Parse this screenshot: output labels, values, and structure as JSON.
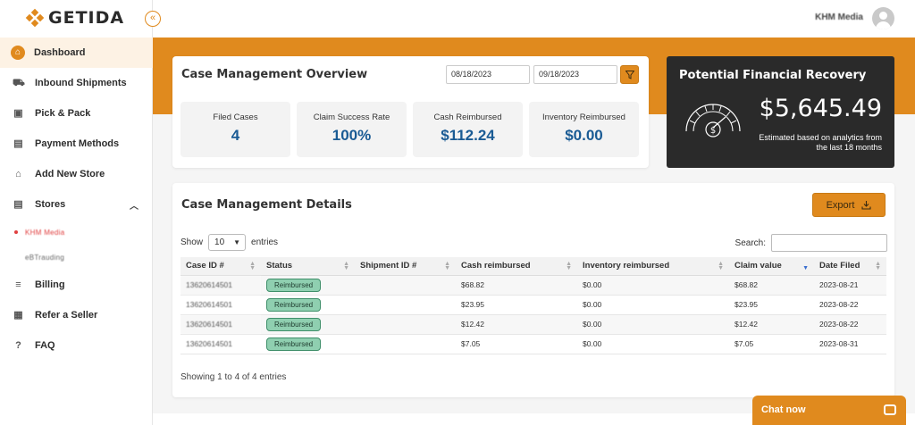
{
  "brand": {
    "name": "GETIDA",
    "accent": "#e08a1e"
  },
  "collapse": {
    "glyph": "«"
  },
  "sidebar": {
    "items": [
      {
        "label": "Dashboard",
        "icon": "home-icon",
        "glyph": "⌂"
      },
      {
        "label": "Inbound Shipments",
        "icon": "truck-icon",
        "glyph": "⛟"
      },
      {
        "label": "Pick & Pack",
        "icon": "box-icon",
        "glyph": "▣"
      },
      {
        "label": "Payment Methods",
        "icon": "credit-card-icon",
        "glyph": "▤"
      },
      {
        "label": "Add New Store",
        "icon": "store-icon",
        "glyph": "⌂"
      },
      {
        "label": "Stores",
        "icon": "stores-icon",
        "glyph": "▤",
        "chevron": "︿"
      },
      {
        "label": "Billing",
        "icon": "billing-icon",
        "glyph": "≡"
      },
      {
        "label": "Refer a Seller",
        "icon": "gift-icon",
        "glyph": "▦"
      },
      {
        "label": "FAQ",
        "icon": "help-icon",
        "glyph": "?"
      }
    ],
    "stores": [
      {
        "label": "KHM Media"
      },
      {
        "label": "eBTrauding"
      }
    ]
  },
  "topbar": {
    "user_name": "KHM Media"
  },
  "overview": {
    "title": "Case Management Overview",
    "date_from": "08/18/2023",
    "date_to": "09/18/2023",
    "stats": [
      {
        "label": "Filed Cases",
        "value": "4"
      },
      {
        "label": "Claim Success Rate",
        "value": "100%"
      },
      {
        "label": "Cash Reimbursed",
        "value": "$112.24"
      },
      {
        "label": "Inventory Reimbursed",
        "value": "$0.00"
      }
    ]
  },
  "recovery": {
    "title": "Potential Financial Recovery",
    "amount": "$5,645.49",
    "note": "Estimated based on analytics from the last 18 months"
  },
  "details": {
    "title": "Case Management Details",
    "export_label": "Export",
    "show_label": "Show",
    "show_value": "10",
    "entries_label": "entries",
    "search_label": "Search:",
    "columns": [
      "Case ID #",
      "Status",
      "Shipment ID #",
      "Cash reimbursed",
      "Inventory reimbursed",
      "Claim value",
      "Date Filed"
    ],
    "rows": [
      {
        "case_id": "13620614501",
        "status": "Reimbursed",
        "shipment_id": "",
        "cash": "$68.82",
        "inventory": "$0.00",
        "claim": "$68.82",
        "date": "2023-08-21"
      },
      {
        "case_id": "13620614501",
        "status": "Reimbursed",
        "shipment_id": "",
        "cash": "$23.95",
        "inventory": "$0.00",
        "claim": "$23.95",
        "date": "2023-08-22"
      },
      {
        "case_id": "13620614501",
        "status": "Reimbursed",
        "shipment_id": "",
        "cash": "$12.42",
        "inventory": "$0.00",
        "claim": "$12.42",
        "date": "2023-08-22"
      },
      {
        "case_id": "13620614501",
        "status": "Reimbursed",
        "shipment_id": "",
        "cash": "$7.05",
        "inventory": "$0.00",
        "claim": "$7.05",
        "date": "2023-08-31"
      }
    ],
    "footer": "Showing 1 to 4 of 4 entries"
  },
  "chat": {
    "label": "Chat now"
  }
}
